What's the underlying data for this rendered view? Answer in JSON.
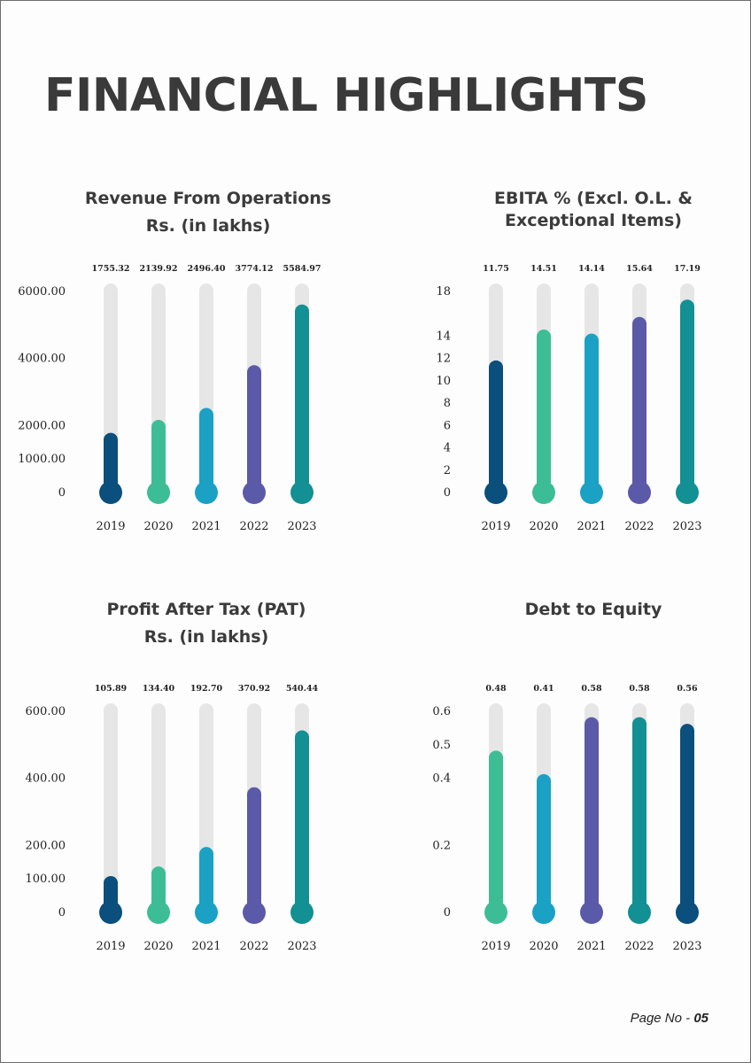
{
  "page": {
    "title": "FINANCIAL HIGHLIGHTS",
    "page_label": "Page No - ",
    "page_num": "05"
  },
  "colors": {
    "track": "#e6e6e6",
    "axis_text": "#222222",
    "title_text": "#3b3b3b",
    "bar_palette": [
      "#0b4f7c",
      "#3dbd96",
      "#1aa1c4",
      "#5a5aa8",
      "#129093"
    ]
  },
  "chart_data": [
    {
      "type": "bar",
      "title_line1": "Revenue From Operations",
      "title_line2": "Rs. (in lakhs)",
      "categories": [
        "2019",
        "2020",
        "2021",
        "2022",
        "2023"
      ],
      "values": [
        1755.32,
        2139.92,
        2496.4,
        3774.12,
        5584.97
      ],
      "value_labels": [
        "1755.32",
        "2139.92",
        "2496.40",
        "3774.12",
        "5584.97"
      ],
      "yticks": [
        "0",
        "1000.00",
        "2000.00",
        "4000.00",
        "6000.00"
      ],
      "ylim": [
        0,
        6000
      ],
      "bar_colors": [
        "#0b4f7c",
        "#3dbd96",
        "#1aa1c4",
        "#5a5aa8",
        "#129093"
      ]
    },
    {
      "type": "bar",
      "title_line1": "EBITA % (Excl. O.L. &",
      "title_line2": "Exceptional Items)",
      "categories": [
        "2019",
        "2020",
        "2021",
        "2022",
        "2023"
      ],
      "values": [
        11.75,
        14.51,
        14.14,
        15.64,
        17.19
      ],
      "value_labels": [
        "11.75",
        "14.51",
        "14.14",
        "15.64",
        "17.19"
      ],
      "yticks": [
        "0",
        "2",
        "4",
        "6",
        "8",
        "10",
        "12",
        "14",
        "18"
      ],
      "ylim": [
        0,
        18
      ],
      "bar_colors": [
        "#0b4f7c",
        "#3dbd96",
        "#1aa1c4",
        "#5a5aa8",
        "#129093"
      ]
    },
    {
      "type": "bar",
      "title_line1": "Profit After Tax (PAT)",
      "title_line2": "Rs. (in lakhs)",
      "categories": [
        "2019",
        "2020",
        "2021",
        "2022",
        "2023"
      ],
      "values": [
        105.89,
        134.4,
        192.7,
        370.92,
        540.44
      ],
      "value_labels": [
        "105.89",
        "134.40",
        "192.70",
        "370.92",
        "540.44"
      ],
      "yticks": [
        "0",
        "100.00",
        "200.00",
        "400.00",
        "600.00"
      ],
      "ylim": [
        0,
        600
      ],
      "bar_colors": [
        "#0b4f7c",
        "#3dbd96",
        "#1aa1c4",
        "#5a5aa8",
        "#129093"
      ]
    },
    {
      "type": "bar",
      "title_line1": "Debt to Equity",
      "title_line2": "",
      "categories": [
        "2019",
        "2020",
        "2021",
        "2022",
        "2023"
      ],
      "values": [
        0.48,
        0.41,
        0.58,
        0.58,
        0.56
      ],
      "value_labels": [
        "0.48",
        "0.41",
        "0.58",
        "0.58",
        "0.56"
      ],
      "yticks": [
        "0",
        "0.2",
        "0.4",
        "0.5",
        "0.6"
      ],
      "ylim": [
        0,
        0.6
      ],
      "bar_colors": [
        "#3dbd96",
        "#1aa1c4",
        "#5a5aa8",
        "#129093",
        "#0b4f7c"
      ]
    }
  ]
}
